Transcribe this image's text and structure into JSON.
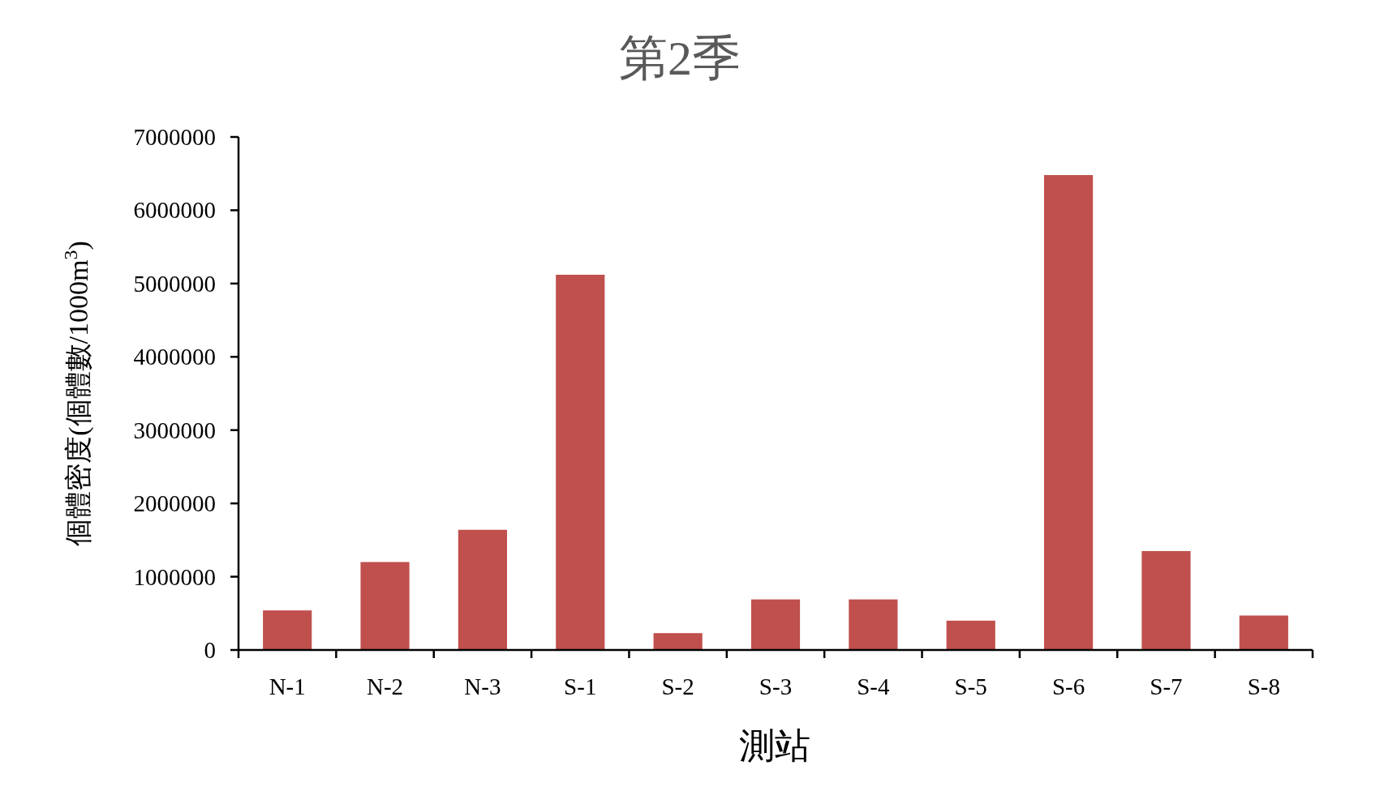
{
  "chart_data": {
    "type": "bar",
    "title": "第2季",
    "xlabel": "測站",
    "ylabel": "個體密度(個體數/1000m$^{3}$)",
    "categories": [
      "N-1",
      "N-2",
      "N-3",
      "S-1",
      "S-2",
      "S-3",
      "S-4",
      "S-5",
      "S-6",
      "S-7",
      "S-8"
    ],
    "values": [
      540000,
      1200000,
      1640000,
      5120000,
      230000,
      690000,
      690000,
      400000,
      6480000,
      1350000,
      470000
    ],
    "color": "#c0504d",
    "ylim": [
      0,
      7000000
    ],
    "yticks": [
      0,
      1000000,
      2000000,
      3000000,
      4000000,
      5000000,
      6000000,
      7000000
    ]
  }
}
